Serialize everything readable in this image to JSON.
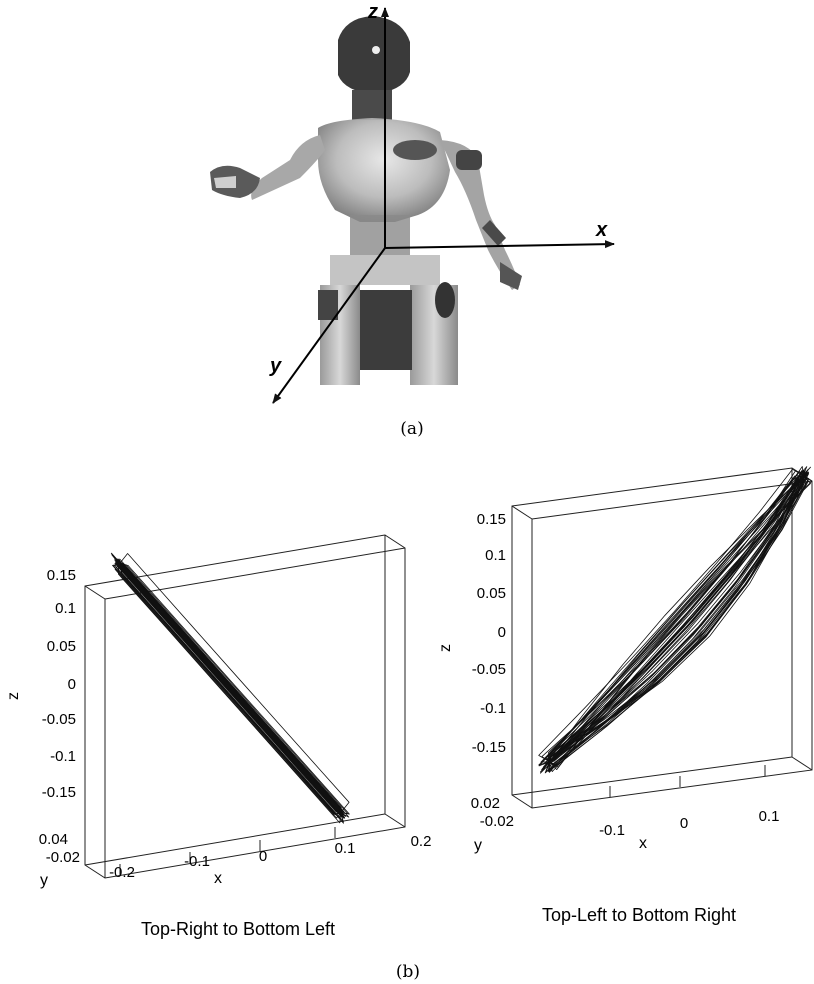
{
  "panel_a": {
    "axis_labels": {
      "x": "x",
      "y": "y",
      "z": "z"
    },
    "caption": "(a)"
  },
  "panel_b": {
    "caption": "(b)"
  },
  "chart_data": [
    {
      "type": "line",
      "subtitle": "Top-Right to Bottom Left",
      "xlabel": "x",
      "ylabel": "y",
      "zlabel": "z",
      "x_ticks": [
        "-0.2",
        "-0.1",
        "0",
        "0.1",
        "0.2"
      ],
      "y_ticks": [
        "0.04",
        "-0.02"
      ],
      "z_ticks": [
        "0.15",
        "0.1",
        "0.05",
        "0",
        "-0.05",
        "-0.1",
        "-0.15"
      ],
      "xlim": [
        -0.22,
        0.2
      ],
      "zlim": [
        -0.18,
        0.16
      ],
      "series": [
        {
          "x": [
            0.11,
            0.06,
            0.0,
            -0.06,
            -0.12,
            -0.17,
            -0.2
          ],
          "z": [
            -0.17,
            -0.12,
            -0.06,
            0.0,
            0.06,
            0.11,
            0.14
          ]
        }
      ]
    },
    {
      "type": "line",
      "subtitle": "Top-Left to Bottom Right",
      "xlabel": "x",
      "ylabel": "y",
      "zlabel": "z",
      "x_ticks": [
        "-0.1",
        "0",
        "0.1"
      ],
      "y_ticks": [
        "0.02",
        "-0.02"
      ],
      "z_ticks": [
        "0.15",
        "0.1",
        "0.05",
        "0",
        "-0.05",
        "-0.1",
        "-0.15"
      ],
      "xlim": [
        -0.17,
        0.15
      ],
      "zlim": [
        -0.19,
        0.17
      ],
      "series": [
        {
          "x": [
            -0.15,
            -0.1,
            -0.05,
            0.0,
            0.05,
            0.1,
            0.14
          ],
          "z": [
            -0.18,
            -0.12,
            -0.06,
            0.0,
            0.06,
            0.12,
            0.17
          ]
        }
      ]
    }
  ]
}
